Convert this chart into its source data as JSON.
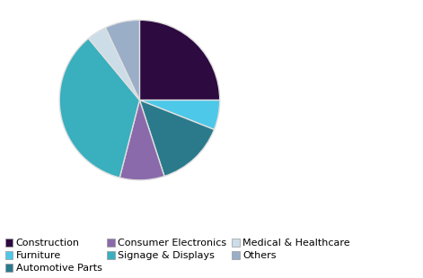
{
  "labels": [
    "Construction",
    "Furniture",
    "Automotive Parts",
    "Consumer Electronics",
    "Signage & Displays",
    "Medical & Healthcare",
    "Others"
  ],
  "values": [
    25,
    6,
    14,
    9,
    35,
    4,
    7
  ],
  "colors": [
    "#2d0a40",
    "#4dc8e8",
    "#2a7a8c",
    "#8a6aaa",
    "#3aafbe",
    "#ccdde8",
    "#9aaec8"
  ],
  "startangle": 90,
  "counterclock": false,
  "background_color": "#ffffff",
  "legend_fontsize": 8.0,
  "figsize": [
    4.71,
    3.1
  ],
  "dpi": 100,
  "edge_color": "#e0e0e0",
  "edge_width": 1.0
}
